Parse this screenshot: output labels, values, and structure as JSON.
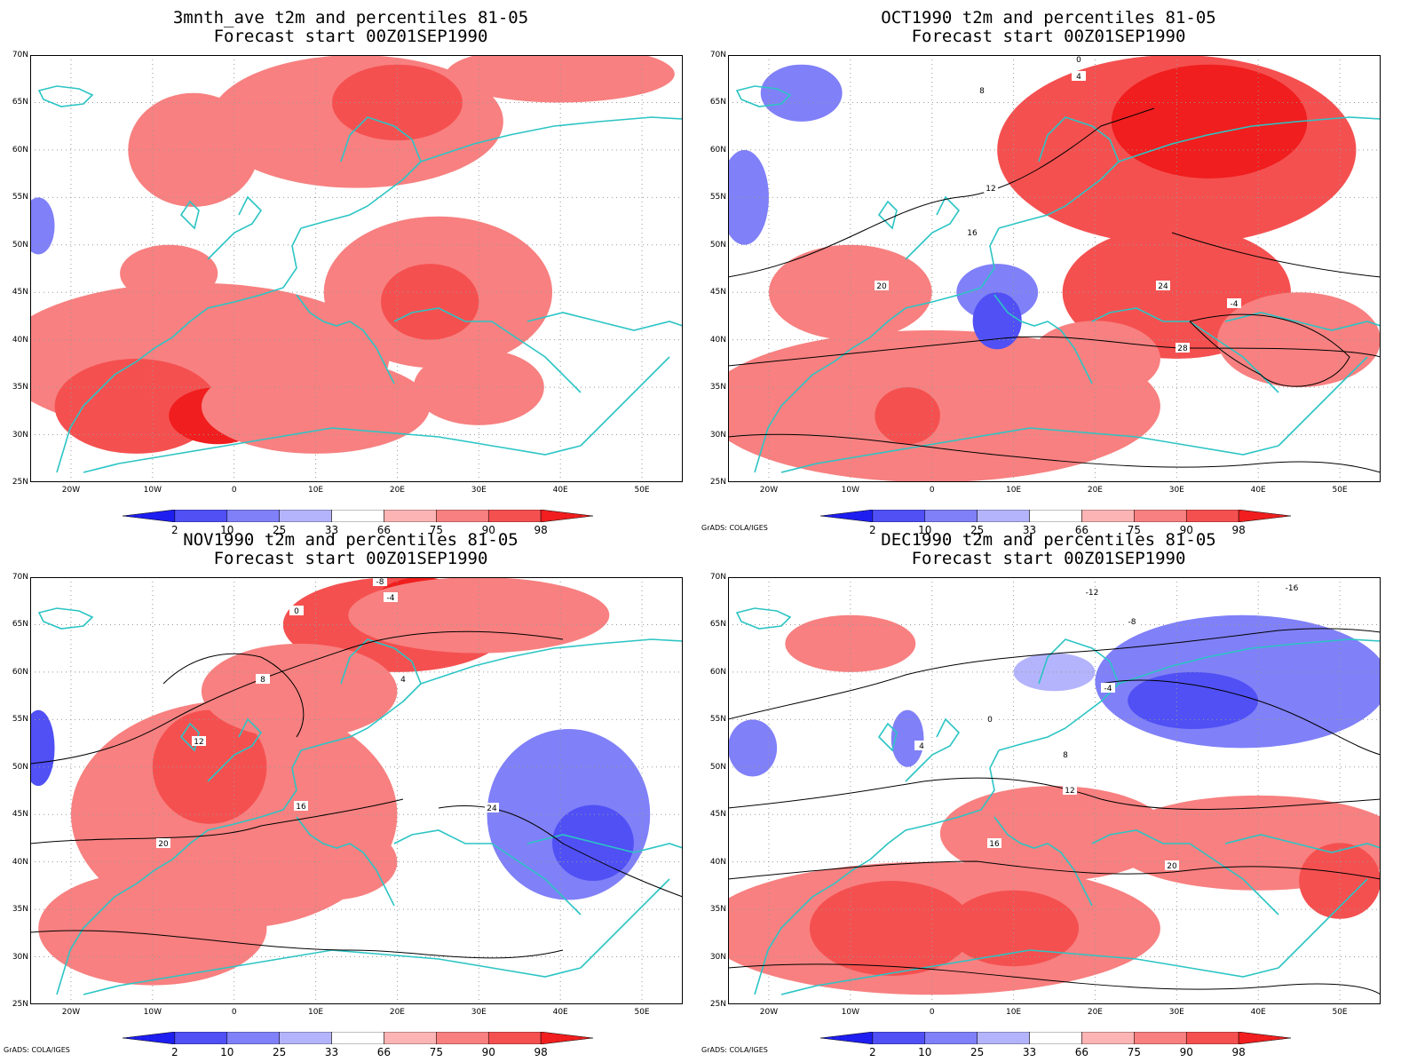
{
  "panels": [
    {
      "title": "3mnth_ave t2m and percentiles 81-05",
      "subtitle": "Forecast start 00Z01SEP1990",
      "credit": "",
      "contours": []
    },
    {
      "title": "OCT1990 t2m and percentiles 81-05",
      "subtitle": "Forecast start 00Z01SEP1990",
      "credit": "GrADS: COLA/IGES",
      "contours": [
        "0",
        "4",
        "8",
        "12",
        "16",
        "20",
        "24",
        "28",
        "-4"
      ]
    },
    {
      "title": "NOV1990 t2m and percentiles 81-05",
      "subtitle": "Forecast start 00Z01SEP1990",
      "credit": "GrADS: COLA/IGES",
      "contours": [
        "-8",
        "-4",
        "0",
        "4",
        "8",
        "12",
        "16",
        "20",
        "24"
      ]
    },
    {
      "title": "DEC1990 t2m and percentiles 81-05",
      "subtitle": "Forecast start 00Z01SEP1990",
      "credit": "GrADS: COLA/IGES",
      "contours": [
        "-16",
        "-12",
        "-8",
        "-4",
        "0",
        "4",
        "8",
        "12",
        "16",
        "20"
      ]
    }
  ],
  "lat_labels": [
    "70N",
    "65N",
    "60N",
    "55N",
    "50N",
    "45N",
    "40N",
    "35N",
    "30N",
    "25N"
  ],
  "lon_labels": [
    "20W",
    "10W",
    "0",
    "10E",
    "20E",
    "30E",
    "40E",
    "50E"
  ],
  "colorbar": {
    "ticks": [
      "2",
      "10",
      "25",
      "33",
      "66",
      "75",
      "90",
      "98"
    ],
    "colors": [
      "#1e1ef0",
      "#5050f5",
      "#8080f8",
      "#b4b4fc",
      "#ffffff",
      "#fcb4b4",
      "#f88080",
      "#f55050",
      "#f01e1e"
    ]
  },
  "map_extent": {
    "lon": [
      -25,
      55
    ],
    "lat": [
      25,
      70
    ]
  }
}
